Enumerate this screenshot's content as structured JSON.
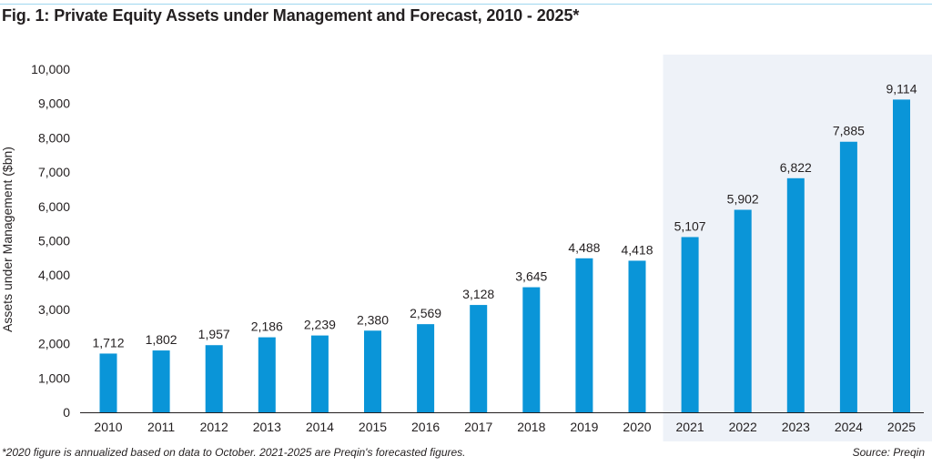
{
  "title": "Fig. 1: Private Equity Assets under Management and Forecast, 2010 - 2025*",
  "footnote": "*2020 figure is annualized based on data to October. 2021-2025 are Preqin's forecasted figures.",
  "source": "Source: Preqin",
  "colors": {
    "bar": "#0a95d8",
    "forecast_bg": "#eef2f8",
    "axis": "#231f20",
    "top_rule": "#9fd7ef"
  },
  "chart_data": {
    "type": "bar",
    "title": "Fig. 1: Private Equity Assets under Management and Forecast, 2010 - 2025*",
    "xlabel": "",
    "ylabel": "Assets under Management ($bn)",
    "ylim": [
      0,
      10000
    ],
    "yticks": [
      0,
      1000,
      2000,
      3000,
      4000,
      5000,
      6000,
      7000,
      8000,
      9000,
      10000
    ],
    "ytick_labels": [
      "0",
      "1,000",
      "2,000",
      "3,000",
      "4,000",
      "5,000",
      "6,000",
      "7,000",
      "8,000",
      "9,000",
      "10,000"
    ],
    "grid": false,
    "categories": [
      "2010",
      "2011",
      "2012",
      "2013",
      "2014",
      "2015",
      "2016",
      "2017",
      "2018",
      "2019",
      "2020",
      "2021",
      "2022",
      "2023",
      "2024",
      "2025"
    ],
    "values": [
      1712,
      1802,
      1957,
      2186,
      2239,
      2380,
      2569,
      3128,
      3645,
      4488,
      4418,
      5107,
      5902,
      6822,
      7885,
      9114
    ],
    "value_labels": [
      "1,712",
      "1,802",
      "1,957",
      "2,186",
      "2,239",
      "2,380",
      "2,569",
      "3,128",
      "3,645",
      "4,488",
      "4,418",
      "5,107",
      "5,902",
      "6,822",
      "7,885",
      "9,114"
    ],
    "forecast_range": [
      "2021",
      "2025"
    ]
  }
}
